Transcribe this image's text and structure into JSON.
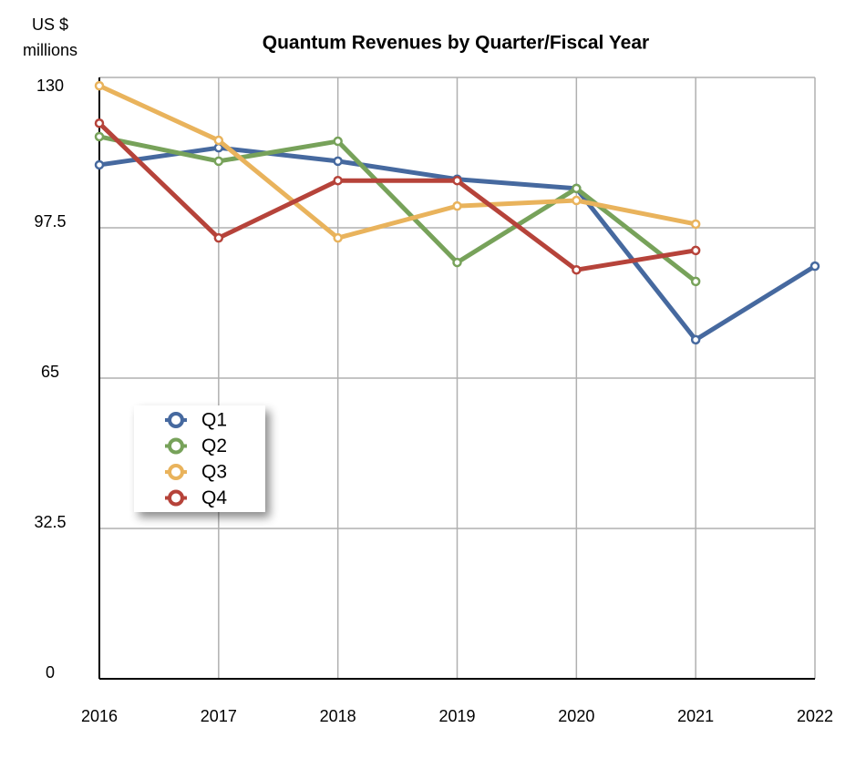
{
  "chart_data": {
    "type": "line",
    "title": "Quantum Revenues by Quarter/Fiscal Year",
    "y_label_lines": [
      "US $",
      "millions"
    ],
    "categories": [
      "2016",
      "2017",
      "2018",
      "2019",
      "2020",
      "2021",
      "2022"
    ],
    "series": [
      {
        "name": "Q1",
        "color": "#46699f",
        "values": [
          111.1,
          114.8,
          111.9,
          108.0,
          106.0,
          73.3,
          89.2
        ]
      },
      {
        "name": "Q2",
        "color": "#77a25a",
        "values": [
          117.2,
          111.9,
          116.2,
          90.0,
          106.0,
          85.9,
          null
        ]
      },
      {
        "name": "Q3",
        "color": "#e9b35c",
        "values": [
          128.2,
          116.4,
          95.3,
          102.2,
          103.4,
          98.3,
          null
        ]
      },
      {
        "name": "Q4",
        "color": "#b6433a",
        "values": [
          120.1,
          95.3,
          107.7,
          107.7,
          88.4,
          92.6,
          null
        ]
      }
    ],
    "ylim": [
      0,
      130
    ],
    "yticks": [
      0,
      32.5,
      65,
      97.5,
      130
    ],
    "grid": true,
    "legend": "lower-left"
  }
}
